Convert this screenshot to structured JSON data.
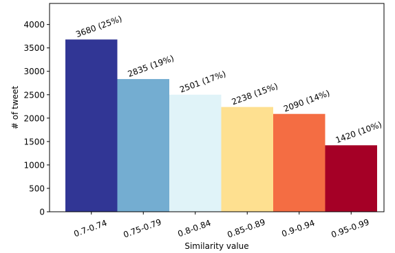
{
  "chart_data": {
    "type": "bar",
    "title": "",
    "xlabel": "Similarity value",
    "ylabel": "# of tweet",
    "categories": [
      "0.7-0.74",
      "0.75-0.79",
      "0.8-0.84",
      "0.85-0.89",
      "0.9-0.94",
      "0.95-0.99"
    ],
    "values": [
      3680,
      2835,
      2501,
      2238,
      2090,
      1420
    ],
    "data_labels": [
      "3680 (25%)",
      "2835 (19%)",
      "2501 (17%)",
      "2238 (15%)",
      "2090 (14%)",
      "1420 (10%)"
    ],
    "colors": [
      "#313695",
      "#74add1",
      "#e0f3f8",
      "#fee090",
      "#f46d43",
      "#a50026"
    ],
    "yticks": [
      0,
      500,
      1000,
      1500,
      2000,
      2500,
      3000,
      3500,
      4000
    ],
    "ylim": [
      0,
      4450
    ],
    "grid": false,
    "legend": "none"
  }
}
